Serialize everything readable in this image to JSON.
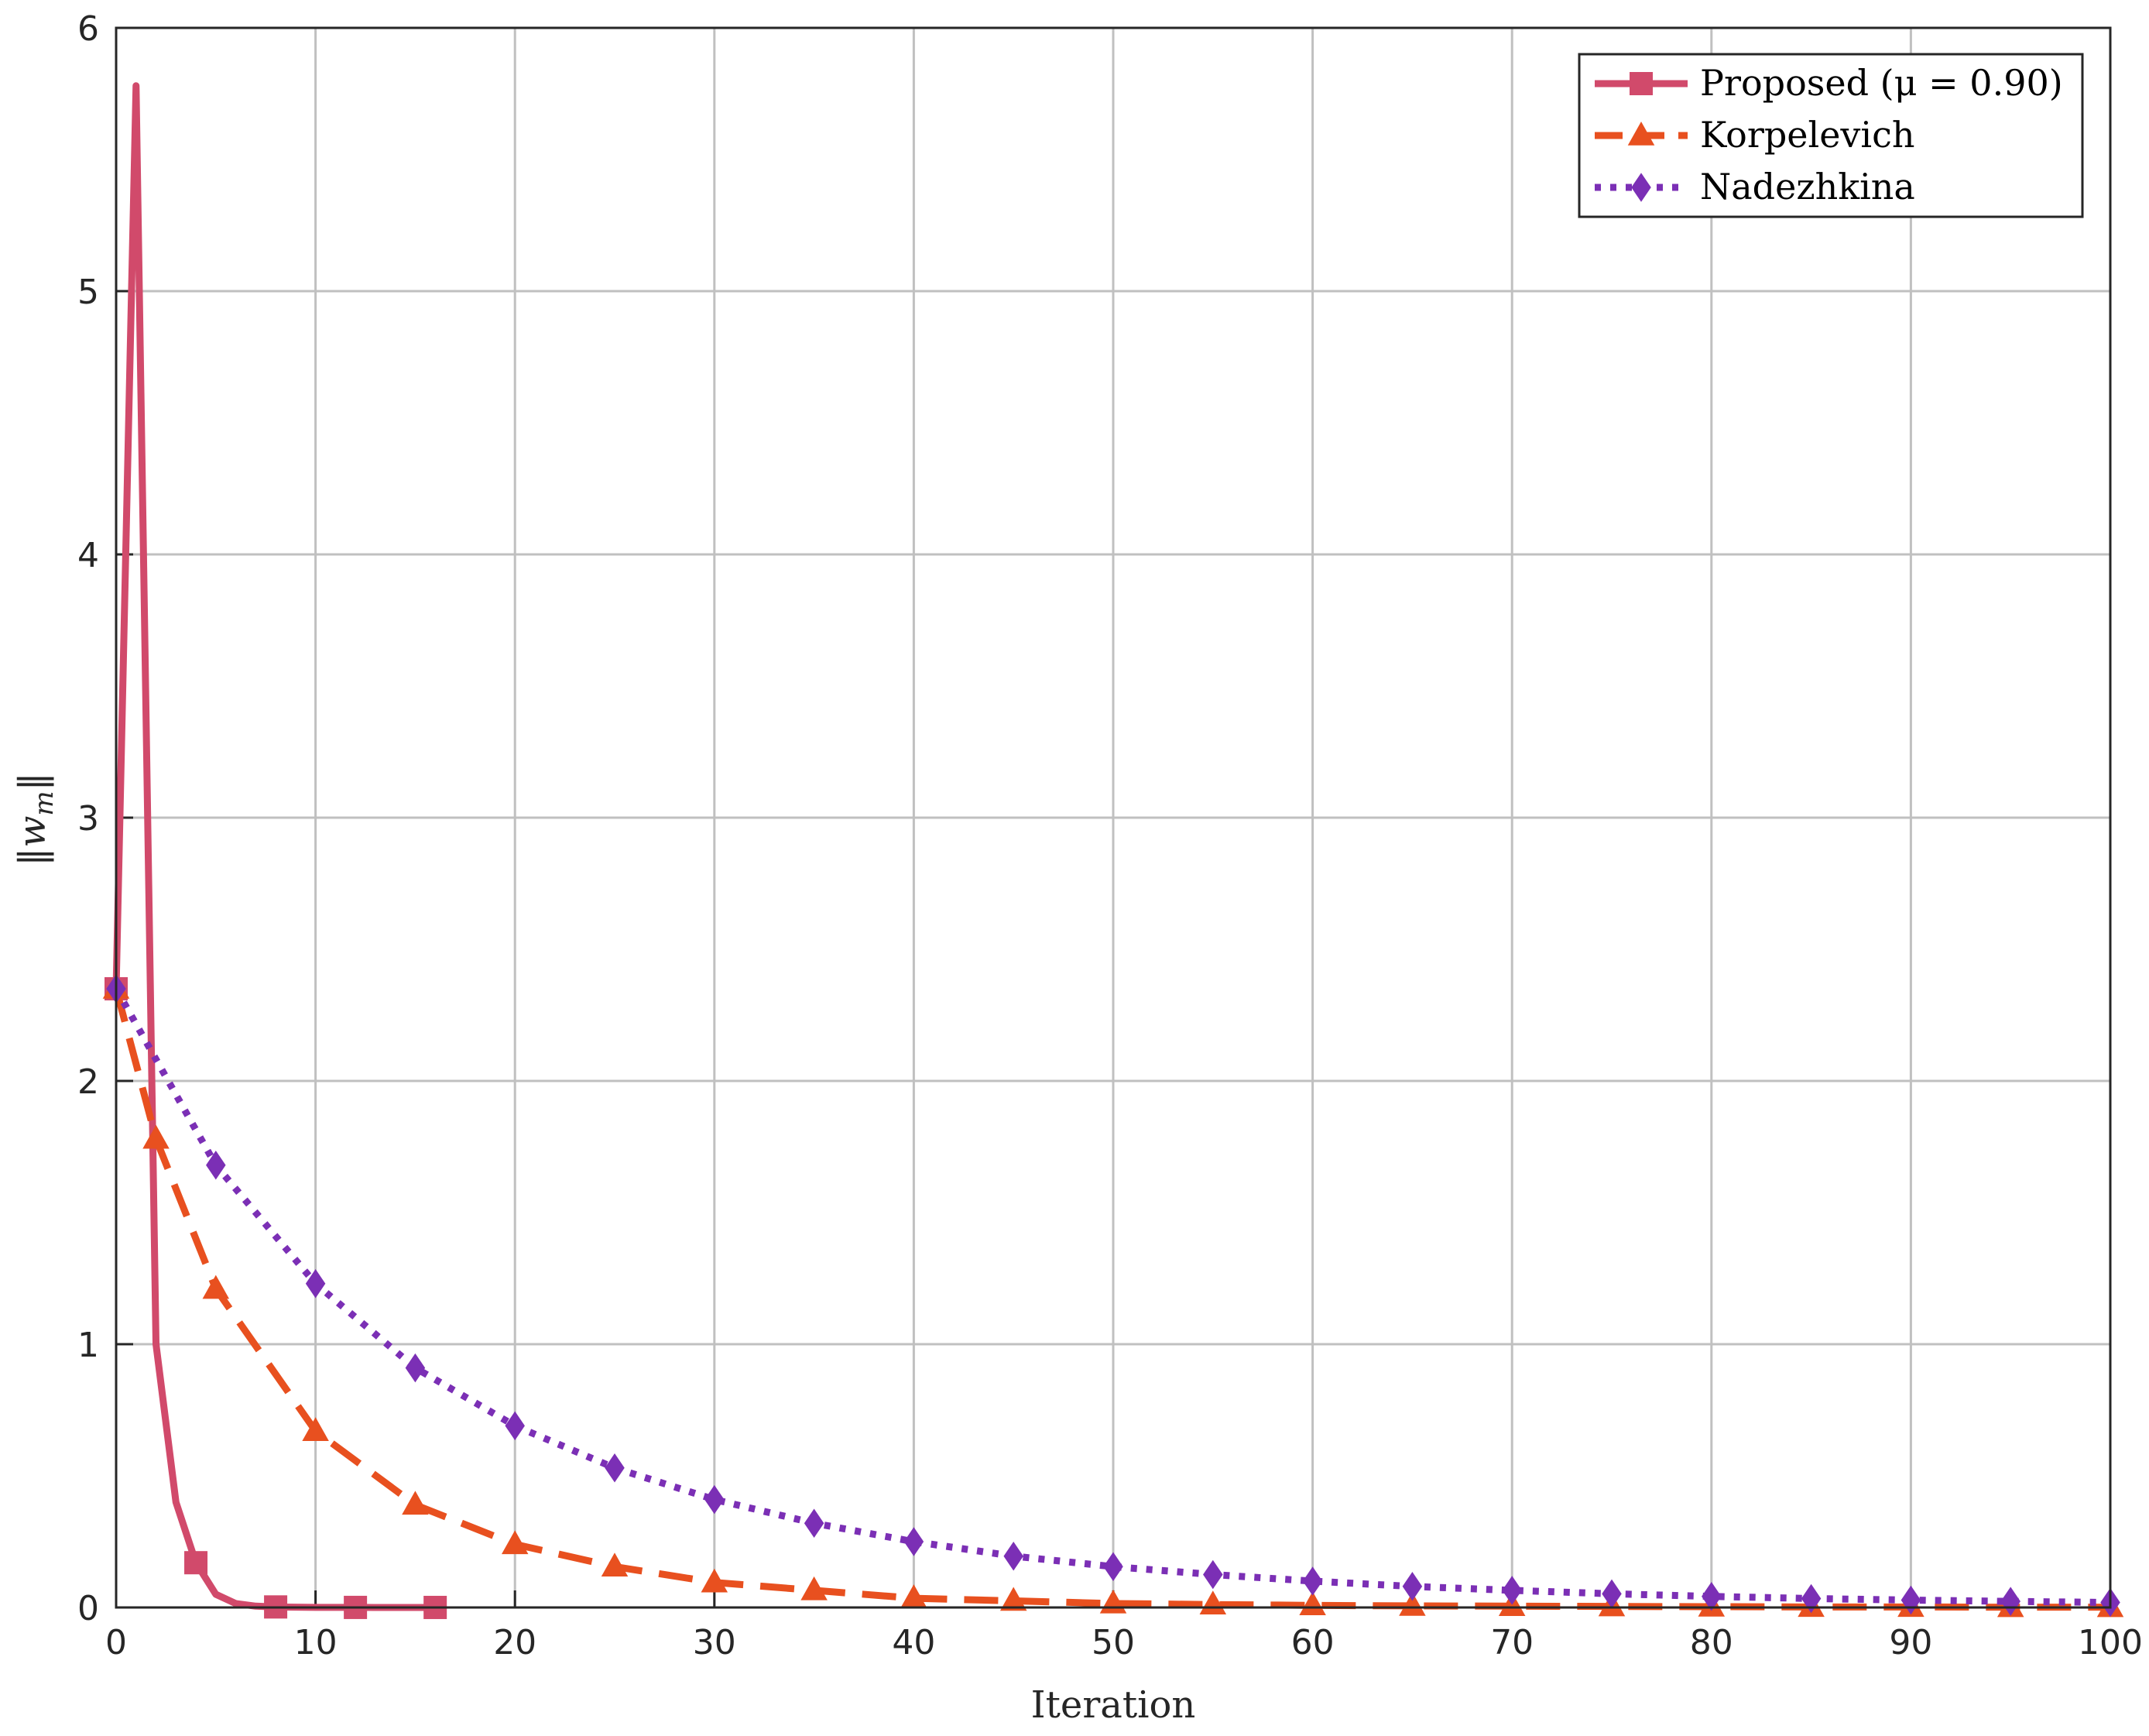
{
  "chart_data": {
    "type": "line",
    "xlabel": "Iteration",
    "ylabel": "||w_m||",
    "xlim": [
      0,
      100
    ],
    "ylim": [
      0,
      6
    ],
    "xticks": [
      "0",
      "10",
      "20",
      "30",
      "40",
      "50",
      "60",
      "70",
      "80",
      "90",
      "100"
    ],
    "yticks": [
      "0",
      "1",
      "2",
      "3",
      "4",
      "5",
      "6"
    ],
    "grid": true,
    "legend_position": "top-right",
    "series": [
      {
        "name": "Proposed (μ = 0.90)",
        "color": "#d14a6b",
        "line_style": "solid",
        "marker": "square",
        "x": [
          0,
          1,
          2,
          3,
          4,
          5,
          6,
          7,
          8,
          9,
          10,
          11,
          12,
          13,
          14,
          15,
          16
        ],
        "y": [
          2.35,
          5.78,
          1.0,
          0.4,
          0.17,
          0.05,
          0.015,
          0.005,
          0.002,
          0.001,
          0.0005,
          0.0003,
          0.0002,
          0.0001,
          0.0001,
          0.0001,
          0.0001
        ],
        "marker_x": [
          0,
          4,
          8,
          12,
          16
        ],
        "marker_y": [
          2.35,
          0.17,
          0.002,
          0.0002,
          0.0001
        ]
      },
      {
        "name": "Korpelevich",
        "color": "#e8501f",
        "line_style": "dashed",
        "marker": "triangle",
        "x": [
          0,
          2,
          5,
          10,
          15,
          20,
          25,
          30,
          35,
          40,
          45,
          50,
          55,
          60,
          65,
          70,
          75,
          80,
          85,
          90,
          95,
          100
        ],
        "y": [
          2.35,
          1.78,
          1.21,
          0.67,
          0.39,
          0.24,
          0.155,
          0.095,
          0.065,
          0.035,
          0.025,
          0.015,
          0.011,
          0.008,
          0.006,
          0.005,
          0.004,
          0.003,
          0.002,
          0.002,
          0.001,
          0.001
        ],
        "marker_x": [
          0,
          2,
          5,
          10,
          15,
          20,
          25,
          30,
          35,
          40,
          45,
          50,
          55,
          60,
          65,
          70,
          75,
          80,
          85,
          90,
          95,
          100
        ],
        "marker_y": [
          2.35,
          1.78,
          1.21,
          0.67,
          0.39,
          0.24,
          0.155,
          0.095,
          0.065,
          0.035,
          0.025,
          0.015,
          0.011,
          0.008,
          0.006,
          0.005,
          0.004,
          0.003,
          0.002,
          0.002,
          0.001,
          0.001
        ]
      },
      {
        "name": "Nadezhkina",
        "color": "#7b2fb5",
        "line_style": "dotted",
        "marker": "diamond",
        "x": [
          0,
          5,
          10,
          15,
          20,
          25,
          30,
          35,
          40,
          45,
          50,
          55,
          60,
          65,
          70,
          75,
          80,
          85,
          90,
          95,
          100
        ],
        "y": [
          2.35,
          1.68,
          1.23,
          0.91,
          0.69,
          0.53,
          0.41,
          0.32,
          0.25,
          0.195,
          0.155,
          0.125,
          0.1,
          0.08,
          0.065,
          0.052,
          0.042,
          0.034,
          0.028,
          0.023,
          0.019
        ],
        "marker_x": [
          0,
          5,
          10,
          15,
          20,
          25,
          30,
          35,
          40,
          45,
          50,
          55,
          60,
          65,
          70,
          75,
          80,
          85,
          90,
          95,
          100
        ],
        "marker_y": [
          2.35,
          1.68,
          1.23,
          0.91,
          0.69,
          0.53,
          0.41,
          0.32,
          0.25,
          0.195,
          0.155,
          0.125,
          0.1,
          0.08,
          0.065,
          0.052,
          0.042,
          0.034,
          0.028,
          0.023,
          0.019
        ]
      }
    ]
  }
}
